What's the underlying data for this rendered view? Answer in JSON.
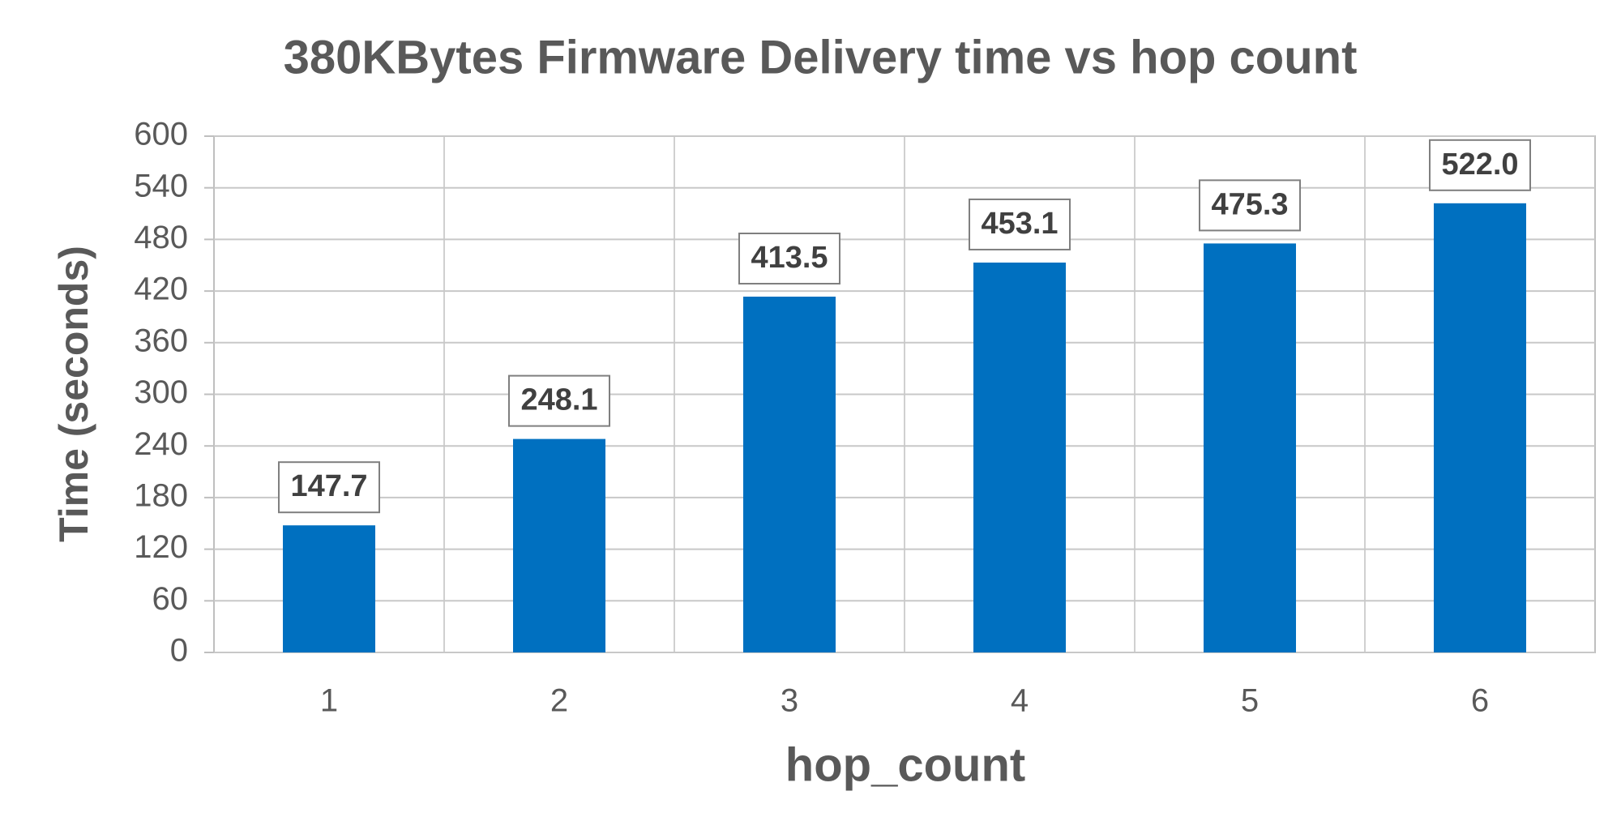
{
  "chart_data": {
    "type": "bar",
    "title": "380KBytes Firmware Delivery time vs hop count",
    "x_label": "hop_count",
    "y_label": "Time (seconds)",
    "categories": [
      "1",
      "2",
      "3",
      "4",
      "5",
      "6"
    ],
    "values": [
      147.7,
      248.1,
      413.5,
      453.1,
      475.3,
      522.0
    ],
    "value_labels": [
      "147.7",
      "248.1",
      "413.5",
      "453.1",
      "475.3",
      "522.0"
    ],
    "color": "#0070c0",
    "ylim": [
      0,
      600
    ],
    "yticks": [
      0,
      60,
      120,
      180,
      240,
      300,
      360,
      420,
      480,
      540,
      600
    ],
    "grid": true
  }
}
